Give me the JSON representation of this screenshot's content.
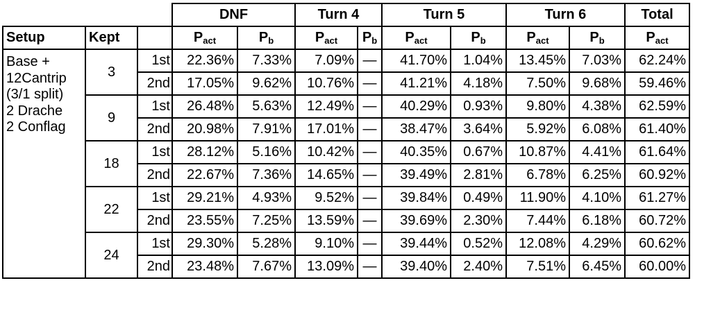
{
  "group_headers": [
    "DNF",
    "Turn 4",
    "Turn 5",
    "Turn 6",
    "Total"
  ],
  "col_headers": {
    "setup": "Setup",
    "kept": "Kept",
    "p_act_main": "P",
    "p_act_sub": "act",
    "p_b_main": "P",
    "p_b_sub": "b"
  },
  "setup_lines": [
    "Base +",
    "12Cantrip",
    "(3/1 split)",
    "2 Drache",
    "2 Conflag"
  ],
  "groups": [
    {
      "kept": "3",
      "rows": [
        {
          "order": "1st",
          "dnf_act": "22.36%",
          "dnf_b": "7.33%",
          "t4_act": "7.09%",
          "t4_b": "—",
          "t5_act": "41.70%",
          "t5_b": "1.04%",
          "t6_act": "13.45%",
          "t6_b": "7.03%",
          "total_act": "62.24%"
        },
        {
          "order": "2nd",
          "dnf_act": "17.05%",
          "dnf_b": "9.62%",
          "t4_act": "10.76%",
          "t4_b": "—",
          "t5_act": "41.21%",
          "t5_b": "4.18%",
          "t6_act": "7.50%",
          "t6_b": "9.68%",
          "total_act": "59.46%"
        }
      ]
    },
    {
      "kept": "9",
      "rows": [
        {
          "order": "1st",
          "dnf_act": "26.48%",
          "dnf_b": "5.63%",
          "t4_act": "12.49%",
          "t4_b": "—",
          "t5_act": "40.29%",
          "t5_b": "0.93%",
          "t6_act": "9.80%",
          "t6_b": "4.38%",
          "total_act": "62.59%"
        },
        {
          "order": "2nd",
          "dnf_act": "20.98%",
          "dnf_b": "7.91%",
          "t4_act": "17.01%",
          "t4_b": "—",
          "t5_act": "38.47%",
          "t5_b": "3.64%",
          "t6_act": "5.92%",
          "t6_b": "6.08%",
          "total_act": "61.40%"
        }
      ]
    },
    {
      "kept": "18",
      "rows": [
        {
          "order": "1st",
          "dnf_act": "28.12%",
          "dnf_b": "5.16%",
          "t4_act": "10.42%",
          "t4_b": "—",
          "t5_act": "40.35%",
          "t5_b": "0.67%",
          "t6_act": "10.87%",
          "t6_b": "4.41%",
          "total_act": "61.64%"
        },
        {
          "order": "2nd",
          "dnf_act": "22.67%",
          "dnf_b": "7.36%",
          "t4_act": "14.65%",
          "t4_b": "—",
          "t5_act": "39.49%",
          "t5_b": "2.81%",
          "t6_act": "6.78%",
          "t6_b": "6.25%",
          "total_act": "60.92%"
        }
      ]
    },
    {
      "kept": "22",
      "rows": [
        {
          "order": "1st",
          "dnf_act": "29.21%",
          "dnf_b": "4.93%",
          "t4_act": "9.52%",
          "t4_b": "—",
          "t5_act": "39.84%",
          "t5_b": "0.49%",
          "t6_act": "11.90%",
          "t6_b": "4.10%",
          "total_act": "61.27%"
        },
        {
          "order": "2nd",
          "dnf_act": "23.55%",
          "dnf_b": "7.25%",
          "t4_act": "13.59%",
          "t4_b": "—",
          "t5_act": "39.69%",
          "t5_b": "2.30%",
          "t6_act": "7.44%",
          "t6_b": "6.18%",
          "total_act": "60.72%"
        }
      ]
    },
    {
      "kept": "24",
      "rows": [
        {
          "order": "1st",
          "dnf_act": "29.30%",
          "dnf_b": "5.28%",
          "t4_act": "9.10%",
          "t4_b": "—",
          "t5_act": "39.44%",
          "t5_b": "0.52%",
          "t6_act": "12.08%",
          "t6_b": "4.29%",
          "total_act": "60.62%"
        },
        {
          "order": "2nd",
          "dnf_act": "23.48%",
          "dnf_b": "7.67%",
          "t4_act": "13.09%",
          "t4_b": "—",
          "t5_act": "39.40%",
          "t5_b": "2.40%",
          "t6_act": "7.51%",
          "t6_b": "6.45%",
          "total_act": "60.00%"
        }
      ]
    }
  ]
}
